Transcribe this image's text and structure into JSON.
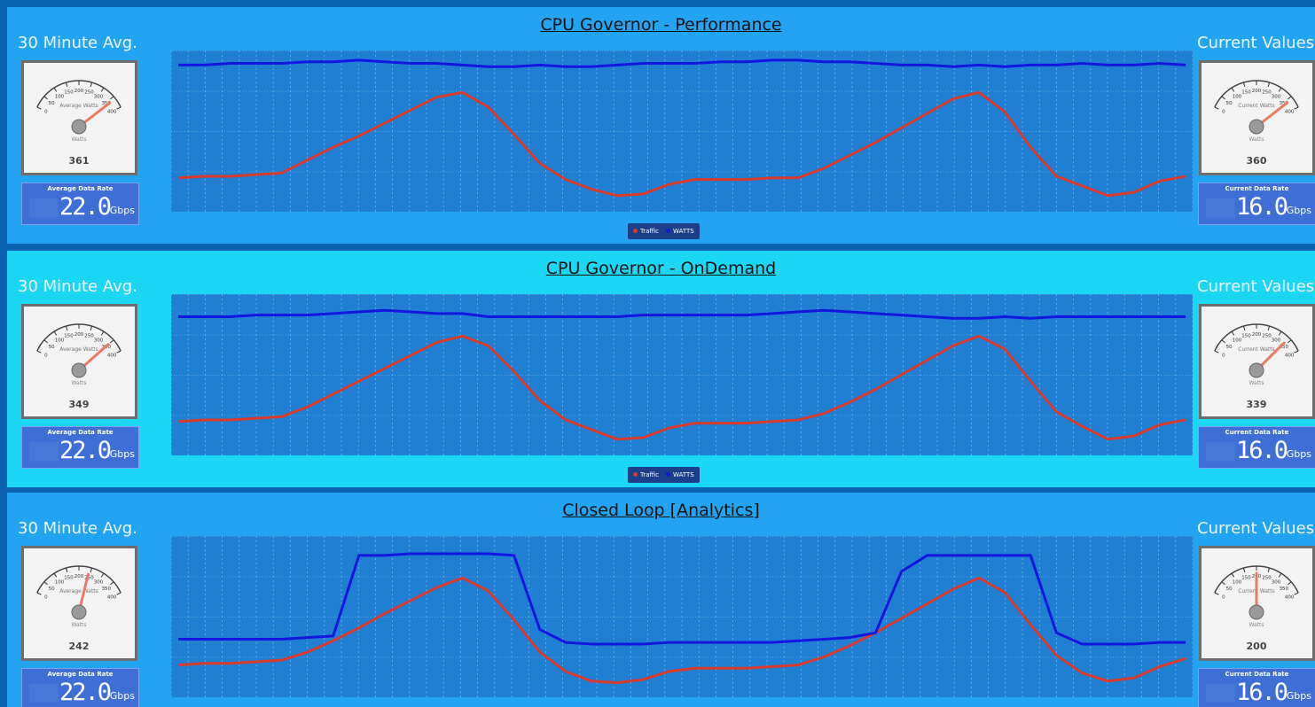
{
  "gauge": {
    "range": [
      0,
      400
    ],
    "ticks": [
      0,
      50,
      100,
      150,
      200,
      250,
      300,
      350,
      400
    ]
  },
  "panels": [
    {
      "title": "CPU Governor - Performance",
      "left": {
        "label": "30 Minute Avg.",
        "gauge_label": "Average Watts",
        "unit_label": "Watts",
        "value": 361,
        "rate_label": "Average Data Rate",
        "rate_value": "22.0",
        "rate_unit": "Gbps"
      },
      "right": {
        "label": "Current Values",
        "gauge_label": "Current Watts",
        "unit_label": "Watts",
        "value": 360,
        "rate_label": "Current Data Rate",
        "rate_value": "16.0",
        "rate_unit": "Gbps"
      },
      "chart_data": {
        "type": "line",
        "ylim": [
          0,
          100
        ],
        "legend": true,
        "series": [
          {
            "name": "Traffic",
            "color": "#d93a2b",
            "values": [
              21,
              22,
              22,
              23,
              24,
              32,
              40,
              47,
              55,
              63,
              71,
              74,
              65,
              48,
              30,
              20,
              14,
              10,
              11,
              17,
              20,
              20,
              20,
              21,
              21,
              27,
              35,
              43,
              52,
              61,
              70,
              74,
              62,
              40,
              22,
              16,
              10,
              12,
              19,
              22
            ]
          },
          {
            "name": "WATTS",
            "color": "#1515e0",
            "values": [
              91,
              91,
              92,
              92,
              92,
              93,
              93,
              94,
              93,
              92,
              92,
              91,
              90,
              90,
              91,
              90,
              90,
              91,
              92,
              92,
              92,
              93,
              93,
              94,
              94,
              93,
              93,
              92,
              91,
              91,
              90,
              91,
              90,
              91,
              91,
              92,
              91,
              91,
              92,
              91
            ]
          }
        ]
      }
    },
    {
      "title": "CPU Governor - OnDemand",
      "left": {
        "label": "30 Minute Avg.",
        "gauge_label": "Average Watts",
        "unit_label": "Watts",
        "value": 349,
        "rate_label": "Average Data Rate",
        "rate_value": "22.0",
        "rate_unit": "Gbps"
      },
      "right": {
        "label": "Current Values",
        "gauge_label": "Current Watts",
        "unit_label": "Watts",
        "value": 339,
        "rate_label": "Current Data Rate",
        "rate_value": "16.0",
        "rate_unit": "Gbps"
      },
      "chart_data": {
        "type": "line",
        "ylim": [
          0,
          100
        ],
        "legend": true,
        "series": [
          {
            "name": "Traffic",
            "color": "#d93a2b",
            "values": [
              21,
              22,
              22,
              23,
              24,
              30,
              38,
              46,
              54,
              62,
              70,
              74,
              68,
              52,
              34,
              22,
              16,
              10,
              11,
              17,
              20,
              20,
              20,
              21,
              22,
              26,
              33,
              41,
              50,
              59,
              68,
              74,
              66,
              46,
              27,
              18,
              10,
              12,
              19,
              22
            ]
          },
          {
            "name": "WATTS",
            "color": "#1515e0",
            "values": [
              86,
              86,
              86,
              87,
              87,
              87,
              88,
              89,
              90,
              89,
              88,
              88,
              86,
              86,
              86,
              86,
              86,
              86,
              87,
              87,
              87,
              87,
              87,
              88,
              89,
              90,
              89,
              88,
              87,
              86,
              85,
              85,
              86,
              85,
              86,
              86,
              86,
              86,
              86,
              86
            ]
          }
        ]
      }
    },
    {
      "title": "Closed Loop [Analytics]",
      "left": {
        "label": "30 Minute Avg.",
        "gauge_label": "Average Watts",
        "unit_label": "Watts",
        "value": 242,
        "rate_label": "Average Data Rate",
        "rate_value": "22.0",
        "rate_unit": "Gbps"
      },
      "right": {
        "label": "Current Values",
        "gauge_label": "Current Watts",
        "unit_label": "Watts",
        "value": 200,
        "rate_label": "Current Data Rate",
        "rate_value": "16.0",
        "rate_unit": "Gbps"
      },
      "chart_data": {
        "type": "line",
        "ylim": [
          0,
          100
        ],
        "legend": false,
        "series": [
          {
            "color": "#d93a2b",
            "values": [
              20,
              21,
              21,
              22,
              23,
              28,
              35,
              43,
              52,
              60,
              68,
              74,
              66,
              48,
              28,
              16,
              10,
              9,
              11,
              16,
              18,
              18,
              18,
              19,
              20,
              25,
              32,
              40,
              49,
              58,
              67,
              74,
              65,
              45,
              26,
              15,
              10,
              12,
              19,
              24
            ]
          },
          {
            "color": "#1515e0",
            "values": [
              36,
              36,
              36,
              36,
              36,
              37,
              38,
              88,
              88,
              89,
              89,
              89,
              89,
              88,
              42,
              34,
              33,
              33,
              33,
              34,
              34,
              34,
              34,
              34,
              35,
              36,
              37,
              40,
              78,
              88,
              88,
              88,
              88,
              88,
              40,
              33,
              33,
              33,
              34,
              34
            ]
          }
        ]
      }
    }
  ]
}
